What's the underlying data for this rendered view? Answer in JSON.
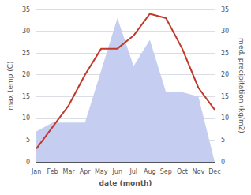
{
  "chart_data": {
    "type": "line",
    "categories": [
      "Jan",
      "Feb",
      "Mar",
      "Apr",
      "May",
      "Jun",
      "Jul",
      "Aug",
      "Sep",
      "Oct",
      "Nov",
      "Dec"
    ],
    "series": [
      {
        "type": "area",
        "axis": "y2",
        "color": "#c5cef0",
        "values": [
          7,
          9,
          9,
          9,
          21,
          33,
          22,
          28,
          16,
          16,
          15,
          0
        ]
      },
      {
        "type": "line",
        "color": "#c0392b",
        "values": [
          3,
          8,
          13,
          20,
          26,
          26,
          29,
          34,
          33,
          26,
          17,
          12
        ]
      }
    ],
    "xlabel": "date (month)",
    "ylabel": "max temp (C)",
    "y2label": "med. precipitation (kg/m2)",
    "ylim": [
      0,
      35
    ],
    "yticks": [
      0,
      5,
      10,
      15,
      20,
      25,
      30,
      35
    ],
    "y2lim": [
      0,
      35
    ],
    "y2ticks": [
      0,
      5,
      10,
      15,
      20,
      25,
      30,
      35
    ],
    "grid": true
  }
}
